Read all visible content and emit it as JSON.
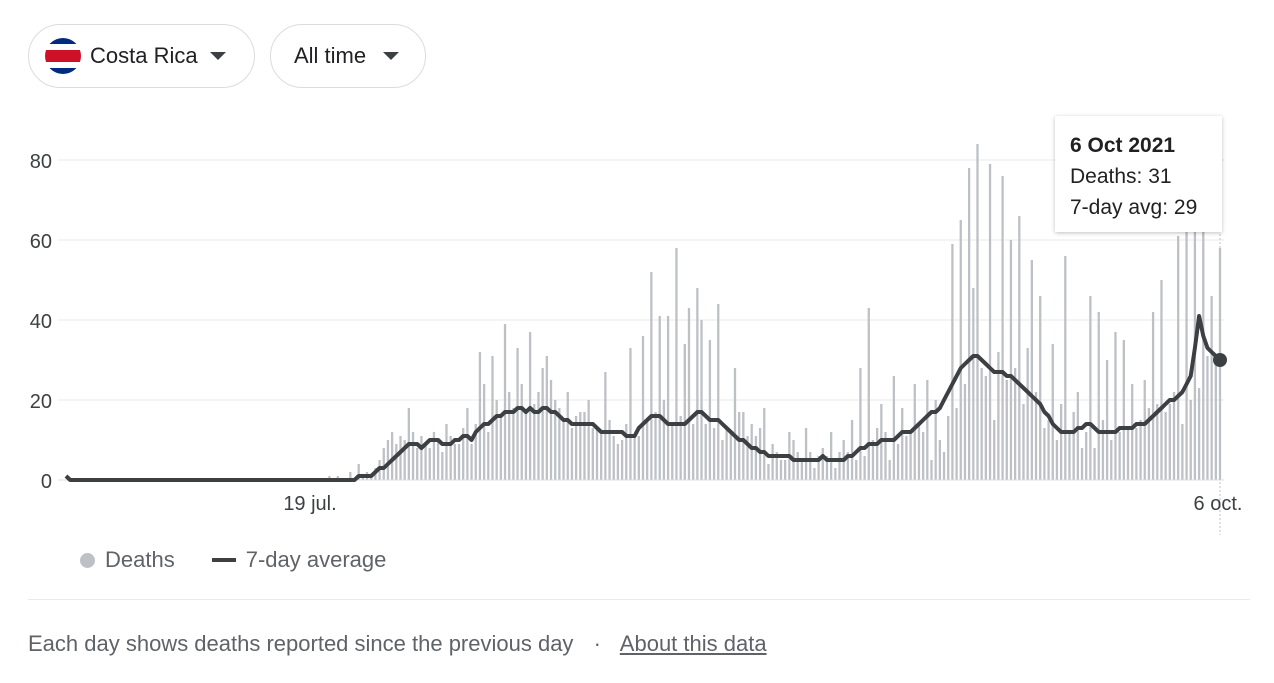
{
  "filters": {
    "country": "Costa Rica",
    "time_range": "All time"
  },
  "tooltip": {
    "date": "6 Oct 2021",
    "deaths": "Deaths: 31",
    "avg": "7-day avg: 29"
  },
  "legend": {
    "deaths_label": "Deaths",
    "avg_label": "7-day average"
  },
  "footer": {
    "note": "Each day shows deaths reported since the previous day",
    "separator": "·",
    "link": "About this data"
  },
  "colors": {
    "bars": "#bdc1c6",
    "line": "#3c4043",
    "grid": "#e8eaed",
    "flag_blue": "#002b7f",
    "flag_red": "#ce1126"
  },
  "chart_data": {
    "type": "bar",
    "title": "",
    "xlabel": "",
    "ylabel": "",
    "ylim": [
      0,
      90
    ],
    "y_ticks": [
      0,
      20,
      40,
      60,
      80
    ],
    "x_tick_labels": [
      "19 jul.",
      "6 oct."
    ],
    "grid": true,
    "legend_position": "bottom-left",
    "highlight": {
      "label": "6 Oct 2021",
      "deaths": 31,
      "avg": 29
    },
    "series": [
      {
        "name": "Deaths",
        "type": "bar",
        "values": [
          0,
          0,
          0,
          0,
          0,
          0,
          0,
          0,
          0,
          0,
          0,
          0,
          0,
          0,
          0,
          0,
          0,
          0,
          0,
          0,
          0,
          0,
          0,
          0,
          0,
          0,
          0,
          0,
          0,
          0,
          0,
          0,
          0,
          0,
          0,
          0,
          0,
          0,
          0,
          0,
          0,
          0,
          0,
          0,
          0,
          0,
          0,
          0,
          0,
          0,
          0,
          0,
          0,
          0,
          0,
          0,
          0,
          0,
          0,
          0,
          0,
          0,
          0,
          1,
          0,
          1,
          0,
          0,
          2,
          0,
          4,
          1,
          2,
          1,
          3,
          5,
          8,
          10,
          12,
          9,
          11,
          10,
          18,
          12,
          8,
          11,
          9,
          8,
          12,
          10,
          7,
          14,
          11,
          9,
          9,
          13,
          18,
          9,
          14,
          32,
          24,
          12,
          31,
          20,
          16,
          39,
          22,
          18,
          33,
          24,
          17,
          37,
          19,
          22,
          28,
          31,
          25,
          20,
          18,
          15,
          22,
          13,
          16,
          17,
          17,
          20,
          13,
          13,
          12,
          27,
          15,
          11,
          9,
          10,
          14,
          33,
          11,
          11,
          36,
          15,
          52,
          17,
          41,
          20,
          41,
          14,
          58,
          16,
          34,
          43,
          14,
          48,
          40,
          14,
          35,
          13,
          44,
          10,
          13,
          12,
          28,
          17,
          17,
          11,
          14,
          11,
          13,
          18,
          4,
          9,
          7,
          5,
          5,
          12,
          10,
          7,
          5,
          13,
          7,
          3,
          6,
          8,
          6,
          12,
          3,
          7,
          10,
          7,
          15,
          5,
          28,
          6,
          43,
          10,
          13,
          19,
          12,
          5,
          26,
          9,
          18,
          11,
          12,
          24,
          14,
          12,
          25,
          5,
          20,
          10,
          7,
          16,
          59,
          18,
          65,
          24,
          78,
          48,
          84,
          28,
          26,
          79,
          15,
          32,
          76,
          25,
          60,
          28,
          66,
          19,
          33,
          55,
          22,
          46,
          13,
          15,
          34,
          10,
          19,
          56,
          12,
          17,
          22,
          8,
          12,
          46,
          8,
          42,
          15,
          30,
          10,
          37,
          12,
          35,
          13,
          24,
          13,
          15,
          25,
          18,
          42,
          19,
          50,
          17,
          19,
          22,
          61,
          14,
          66,
          20,
          63,
          23,
          66,
          31,
          46,
          31,
          58
        ]
      },
      {
        "name": "7-day average",
        "type": "line",
        "values": [
          1,
          0,
          0,
          0,
          0,
          0,
          0,
          0,
          0,
          0,
          0,
          0,
          0,
          0,
          0,
          0,
          0,
          0,
          0,
          0,
          0,
          0,
          0,
          0,
          0,
          0,
          0,
          0,
          0,
          0,
          0,
          0,
          0,
          0,
          0,
          0,
          0,
          0,
          0,
          0,
          0,
          0,
          0,
          0,
          0,
          0,
          0,
          0,
          0,
          0,
          0,
          0,
          0,
          0,
          0,
          0,
          0,
          0,
          0,
          0,
          0,
          0,
          0,
          0,
          0,
          0,
          0,
          0,
          0,
          0,
          1,
          1,
          1,
          1,
          2,
          3,
          3,
          4,
          5,
          6,
          7,
          8,
          9,
          9,
          9,
          8,
          9,
          10,
          10,
          10,
          9,
          9,
          9,
          10,
          10,
          11,
          11,
          10,
          12,
          13,
          14,
          14,
          15,
          16,
          16,
          17,
          17,
          17,
          18,
          18,
          17,
          18,
          17,
          17,
          18,
          18,
          17,
          17,
          16,
          15,
          15,
          14,
          14,
          14,
          14,
          14,
          14,
          13,
          12,
          12,
          12,
          12,
          12,
          12,
          11,
          11,
          11,
          13,
          14,
          15,
          16,
          16,
          16,
          15,
          14,
          14,
          14,
          14,
          14,
          15,
          16,
          17,
          17,
          16,
          15,
          15,
          15,
          14,
          13,
          12,
          11,
          10,
          10,
          9,
          8,
          8,
          7,
          7,
          6,
          6,
          6,
          6,
          6,
          6,
          5,
          5,
          5,
          5,
          5,
          5,
          5,
          6,
          5,
          5,
          5,
          5,
          5,
          6,
          6,
          7,
          8,
          8,
          9,
          9,
          9,
          10,
          10,
          10,
          10,
          11,
          12,
          12,
          12,
          13,
          14,
          15,
          16,
          17,
          17,
          18,
          20,
          22,
          24,
          26,
          28,
          29,
          30,
          31,
          31,
          30,
          29,
          28,
          27,
          27,
          27,
          26,
          26,
          25,
          24,
          23,
          22,
          21,
          20,
          19,
          17,
          16,
          14,
          13,
          12,
          12,
          12,
          12,
          13,
          13,
          14,
          14,
          13,
          12,
          12,
          12,
          12,
          12,
          13,
          13,
          13,
          13,
          14,
          14,
          14,
          15,
          16,
          17,
          18,
          19,
          20,
          20,
          21,
          22,
          24,
          26,
          33,
          41,
          36,
          33,
          32,
          31,
          30,
          29
        ]
      }
    ]
  }
}
